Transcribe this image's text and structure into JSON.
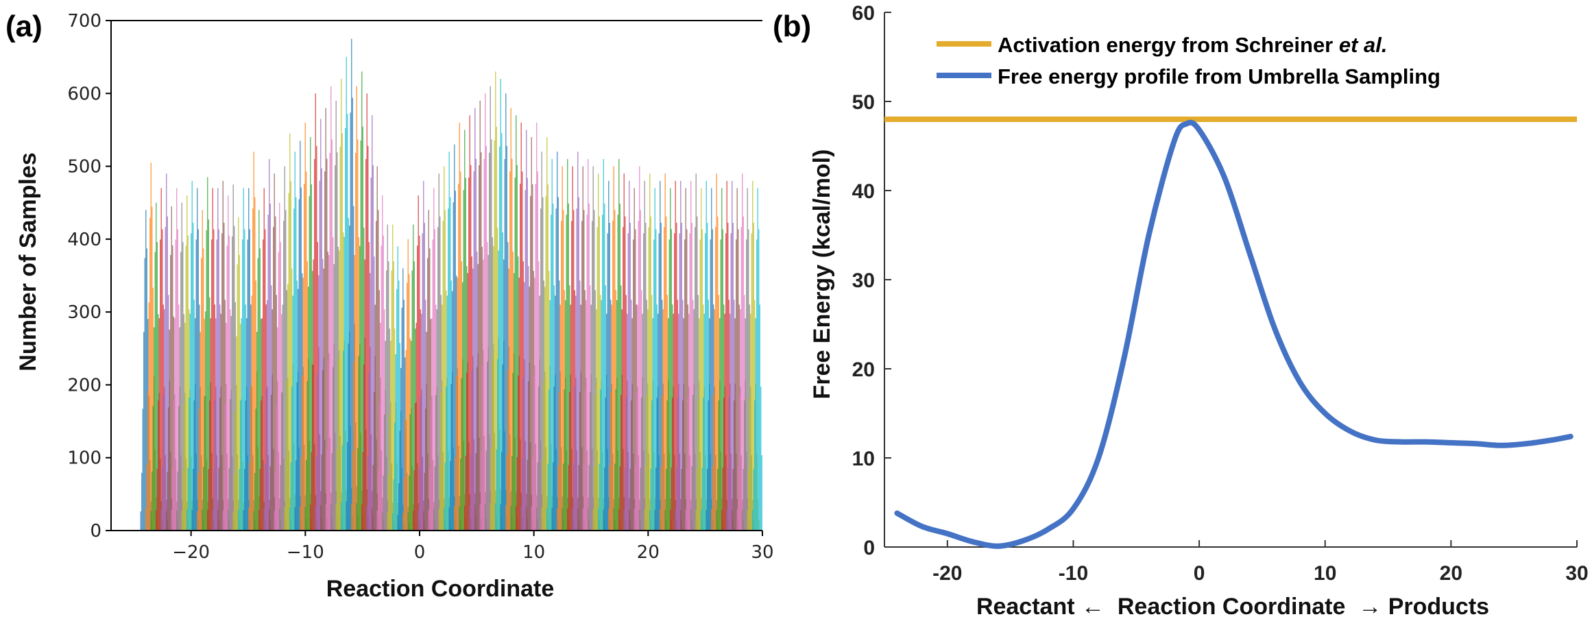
{
  "chart_data": [
    {
      "panel_label": "(a)",
      "type": "bar",
      "subtype": "histogram",
      "xlabel": "Reaction Coordinate",
      "ylabel": "Number of Samples",
      "xlim": [
        -27,
        30
      ],
      "ylim": [
        0,
        700
      ],
      "xticks": [
        -20,
        -10,
        0,
        10,
        20,
        30
      ],
      "xtick_labels": [
        "−20",
        "−10",
        "0",
        "10",
        "20",
        "30"
      ],
      "yticks": [
        0,
        100,
        200,
        300,
        400,
        500,
        600,
        700
      ],
      "ytick_labels": [
        "0",
        "100",
        "200",
        "300",
        "400",
        "500",
        "600",
        "700"
      ],
      "series_count": 120,
      "bin_width": 0.09,
      "window_centers": [
        -24,
        -23.55,
        -23.1,
        -22.65,
        -22.2,
        -21.75,
        -21.3,
        -20.85,
        -20.4,
        -19.95,
        -19.5,
        -19.05,
        -18.6,
        -18.15,
        -17.7,
        -17.25,
        -16.8,
        -16.35,
        -15.9,
        -15.45,
        -15,
        -14.55,
        -14.1,
        -13.65,
        -13.2,
        -12.75,
        -12.3,
        -11.85,
        -11.4,
        -10.95,
        -10.5,
        -10.05,
        -9.6,
        -9.15,
        -8.7,
        -8.25,
        -7.8,
        -7.35,
        -6.9,
        -6.45,
        -6,
        -5.55,
        -5.1,
        -4.65,
        -4.2,
        -3.75,
        -3.3,
        -2.85,
        -2.4,
        -1.95,
        -1.5,
        -1.05,
        -0.6,
        -0.15,
        0.3,
        0.75,
        1.2,
        1.65,
        2.1,
        2.55,
        3,
        3.45,
        3.9,
        4.35,
        4.8,
        5.25,
        5.7,
        6.15,
        6.6,
        7.05,
        7.5,
        7.95,
        8.4,
        8.85,
        9.3,
        9.75,
        10.2,
        10.65,
        11.1,
        11.55,
        12,
        12.45,
        12.9,
        13.35,
        13.8,
        14.25,
        14.7,
        15.15,
        15.6,
        16.05,
        16.5,
        16.95,
        17.4,
        17.85,
        18.3,
        18.75,
        19.2,
        19.65,
        20.1,
        20.55,
        21,
        21.45,
        21.9,
        22.35,
        22.8,
        23.25,
        23.7,
        24.15,
        24.6,
        25.05,
        25.5,
        25.95,
        26.4,
        26.85,
        27.3,
        27.75,
        28.2,
        28.65,
        29.1,
        29.55
      ],
      "peak_counts": [
        440,
        505,
        450,
        470,
        490,
        445,
        470,
        450,
        460,
        480,
        470,
        440,
        485,
        470,
        470,
        480,
        460,
        475,
        430,
        470,
        470,
        520,
        440,
        470,
        510,
        490,
        450,
        500,
        545,
        520,
        535,
        560,
        540,
        600,
        565,
        580,
        610,
        590,
        620,
        650,
        675,
        610,
        630,
        600,
        570,
        500,
        460,
        420,
        420,
        390,
        360,
        400,
        420,
        460,
        480,
        440,
        470,
        490,
        500,
        520,
        530,
        560,
        550,
        570,
        580,
        590,
        600,
        610,
        630,
        620,
        600,
        580,
        570,
        560,
        550,
        540,
        560,
        520,
        540,
        510,
        520,
        500,
        510,
        500,
        520,
        500,
        510,
        500,
        490,
        510,
        480,
        500,
        510,
        490,
        480,
        470,
        500,
        480,
        490,
        470,
        480,
        490,
        470,
        480,
        480,
        470,
        480,
        490,
        470,
        480,
        470,
        490,
        470,
        480,
        480,
        470,
        490,
        470,
        480,
        470
      ],
      "colors": [
        "#1f77b4",
        "#ff7f0e",
        "#2ca02c",
        "#d62728",
        "#9467bd",
        "#8c564b",
        "#e377c2",
        "#7f7f7f",
        "#bcbd22",
        "#17becf"
      ],
      "bar_opacity": 0.7
    },
    {
      "panel_label": "(b)",
      "type": "line",
      "xlabel": "Reactant ←  Reaction Coordinate  → Products",
      "ylabel": "Free Energy (kcal/mol)",
      "xlim": [
        -25,
        30
      ],
      "ylim": [
        0,
        60
      ],
      "xticks": [
        -20,
        -10,
        0,
        10,
        20,
        30
      ],
      "xtick_labels": [
        "-20",
        "-10",
        "0",
        "10",
        "20",
        "30"
      ],
      "yticks": [
        0,
        10,
        20,
        30,
        40,
        50,
        60
      ],
      "ytick_labels": [
        "0",
        "10",
        "20",
        "30",
        "40",
        "50",
        "60"
      ],
      "legend_position": "top",
      "series": [
        {
          "name": "Activation energy from Schreiner et al.",
          "name_plain": "Activation energy from Schreiner ",
          "name_italic": "et al.",
          "color": "#e3ac2c",
          "kind": "hline",
          "y": 48
        },
        {
          "name": "Free energy profile from Umbrella Sampling",
          "color": "#4472c4",
          "kind": "line",
          "x": [
            -24,
            -22,
            -20,
            -18,
            -16,
            -14,
            -12,
            -10,
            -8,
            -6,
            -4,
            -2,
            -1,
            0,
            2,
            4,
            6,
            8,
            10,
            12,
            14,
            16,
            18,
            20,
            22,
            24,
            26,
            28,
            29.5
          ],
          "y": [
            3.8,
            2.3,
            1.5,
            0.6,
            0.1,
            0.7,
            2.0,
            4.3,
            10.0,
            21.0,
            35.0,
            45.5,
            47.5,
            46.8,
            41.5,
            33.0,
            24.5,
            18.5,
            15.0,
            13.0,
            12.0,
            11.8,
            11.8,
            11.7,
            11.6,
            11.4,
            11.6,
            12.0,
            12.4
          ]
        }
      ]
    }
  ]
}
